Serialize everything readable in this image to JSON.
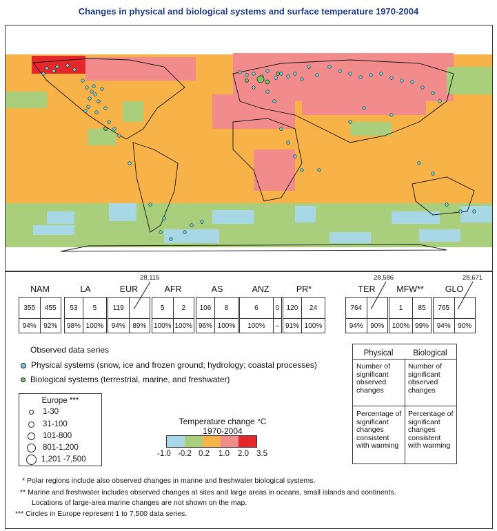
{
  "title": "Changes in physical and biological systems and surface temperature 1970-2004",
  "regions": [
    {
      "name": "NAM",
      "phys": "355",
      "bio": "455",
      "phys_pct": "94%",
      "bio_pct": "92%"
    },
    {
      "name": "LA",
      "phys": "53",
      "bio": "5",
      "phys_pct": "98%",
      "bio_pct": "100%"
    },
    {
      "name": "EUR",
      "phys": "119",
      "bio": "",
      "phys_pct": "94%",
      "bio_pct": "89%",
      "total": "28,115"
    },
    {
      "name": "AFR",
      "phys": "5",
      "bio": "2",
      "phys_pct": "100%",
      "bio_pct": "100%"
    },
    {
      "name": "AS",
      "phys": "106",
      "bio": "8",
      "phys_pct": "96%",
      "bio_pct": "100%"
    },
    {
      "name": "ANZ",
      "phys": "6",
      "bio": "0",
      "phys_pct": "100%",
      "bio_pct": "–"
    },
    {
      "name": "PR*",
      "phys": "120",
      "bio": "24",
      "phys_pct": "91%",
      "bio_pct": "100%"
    },
    {
      "name": "TER",
      "phys": "764",
      "bio": "",
      "phys_pct": "94%",
      "bio_pct": "90%",
      "total": "28,586"
    },
    {
      "name": "MFW**",
      "phys": "1",
      "bio": "85",
      "phys_pct": "100%",
      "bio_pct": "99%"
    },
    {
      "name": "GLO",
      "phys": "765",
      "bio": "",
      "phys_pct": "94%",
      "bio_pct": "90%",
      "total": "28,671"
    }
  ],
  "series": {
    "title": "Observed data series",
    "physical": "Physical systems (snow, ice and frozen ground; hydrology; coastal processes)",
    "biological": "Biological systems (terrestrial, marine, and freshwater)"
  },
  "europe": {
    "title": "Europe ***",
    "sizes": [
      "1-30",
      "31-100",
      "101-800",
      "801-1,200",
      "1,201 -7,500"
    ]
  },
  "temperature": {
    "title": "Temperature change °C",
    "period": "1970-2004",
    "colors": [
      "#a8d8e6",
      "#a9cf7c",
      "#f7b248",
      "#f5a040",
      "#f28c8c",
      "#e5262a"
    ],
    "ticks": [
      "-1.0",
      "-0.2",
      "0.2",
      "1.0",
      "2.0",
      "3.5"
    ]
  },
  "legend_box": {
    "physical": "Physical",
    "biological": "Biological",
    "count": "Number of significant observed changes",
    "percent": "Percentage of significant changes consistent with warming"
  },
  "footnotes": [
    "* Polar regions include also observed changes in marine and freshwater biological systems.",
    "** Marine and freshwater includes observed changes at sites and large areas in oceans, small islands and continents.",
    "Locations of large-area marine changes are not shown on the map.",
    "*** Circles in Europe represent 1 to 7,500 data series."
  ]
}
